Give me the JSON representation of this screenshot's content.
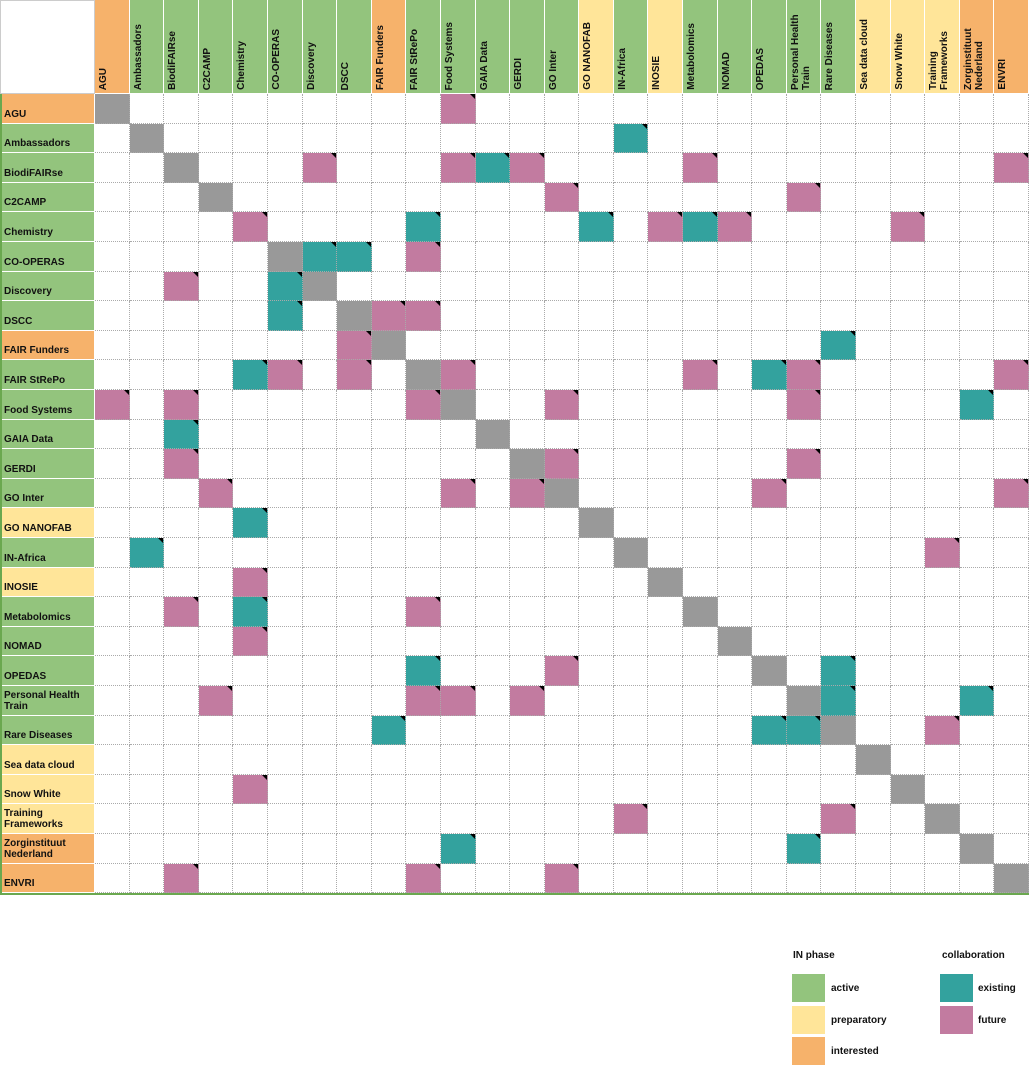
{
  "networks": [
    {
      "name": "AGU",
      "phase": "interested",
      "existing": [],
      "future": [
        "Food Systems"
      ]
    },
    {
      "name": "Ambassadors",
      "phase": "active",
      "existing": [
        "IN-Africa"
      ],
      "future": []
    },
    {
      "name": "BiodiFAIRse",
      "phase": "active",
      "existing": [
        "GAIA Data"
      ],
      "future": [
        "Discovery",
        "Food Systems",
        "GERDI",
        "Metabolomics",
        "ENVRI"
      ]
    },
    {
      "name": "C2CAMP",
      "phase": "active",
      "existing": [],
      "future": [
        "GO Inter",
        "Personal Health Train"
      ]
    },
    {
      "name": "Chemistry",
      "phase": "active",
      "existing": [
        "FAIR StRePo",
        "GO NANOFAB",
        "Metabolomics"
      ],
      "future": [
        "Chemistry",
        "INOSIE",
        "NOMAD",
        "Snow White"
      ]
    },
    {
      "name": "CO-OPERAS",
      "phase": "active",
      "existing": [
        "Discovery",
        "DSCC"
      ],
      "future": [
        "FAIR StRePo"
      ]
    },
    {
      "name": "Discovery",
      "phase": "active",
      "existing": [
        "CO-OPERAS"
      ],
      "future": [
        "BiodiFAIRse"
      ]
    },
    {
      "name": "DSCC",
      "phase": "active",
      "existing": [
        "CO-OPERAS"
      ],
      "future": [
        "FAIR Funders",
        "FAIR StRePo"
      ]
    },
    {
      "name": "FAIR Funders",
      "phase": "interested",
      "existing": [
        "Rare Diseases"
      ],
      "future": [
        "DSCC"
      ]
    },
    {
      "name": "FAIR StRePo",
      "phase": "active",
      "existing": [
        "Chemistry",
        "OPEDAS"
      ],
      "future": [
        "CO-OPERAS",
        "DSCC",
        "Food Systems",
        "Metabolomics",
        "Personal Health Train",
        "ENVRI"
      ]
    },
    {
      "name": "Food Systems",
      "phase": "active",
      "existing": [
        "Zorginstituut Nederland"
      ],
      "future": [
        "AGU",
        "BiodiFAIRse",
        "FAIR StRePo",
        "GO Inter",
        "Personal Health Train"
      ]
    },
    {
      "name": "GAIA Data",
      "phase": "active",
      "existing": [
        "BiodiFAIRse"
      ],
      "future": []
    },
    {
      "name": "GERDI",
      "phase": "active",
      "existing": [],
      "future": [
        "BiodiFAIRse",
        "GO Inter",
        "Personal Health Train"
      ]
    },
    {
      "name": "GO Inter",
      "phase": "active",
      "existing": [],
      "future": [
        "C2CAMP",
        "Food Systems",
        "GERDI",
        "OPEDAS",
        "ENVRI"
      ]
    },
    {
      "name": "GO NANOFAB",
      "phase": "preparatory",
      "existing": [
        "Chemistry"
      ],
      "future": []
    },
    {
      "name": "IN-Africa",
      "phase": "active",
      "existing": [
        "Ambassadors"
      ],
      "future": [
        "Training Frameworks"
      ]
    },
    {
      "name": "INOSIE",
      "phase": "preparatory",
      "existing": [],
      "future": [
        "Chemistry"
      ]
    },
    {
      "name": "Metabolomics",
      "phase": "active",
      "existing": [
        "Chemistry"
      ],
      "future": [
        "BiodiFAIRse",
        "FAIR StRePo"
      ]
    },
    {
      "name": "NOMAD",
      "phase": "active",
      "existing": [],
      "future": [
        "Chemistry"
      ]
    },
    {
      "name": "OPEDAS",
      "phase": "active",
      "existing": [
        "FAIR StRePo",
        "Rare Diseases"
      ],
      "future": [
        "GO Inter"
      ]
    },
    {
      "name": "Personal Health Train",
      "phase": "active",
      "existing": [
        "Rare Diseases",
        "Zorginstituut Nederland"
      ],
      "future": [
        "C2CAMP",
        "FAIR StRePo",
        "Food Systems",
        "GERDI"
      ]
    },
    {
      "name": "Rare Diseases",
      "phase": "active",
      "existing": [
        "FAIR Funders",
        "OPEDAS",
        "Personal Health Train"
      ],
      "future": [
        "Training Frameworks"
      ]
    },
    {
      "name": "Sea data cloud",
      "phase": "preparatory",
      "existing": [],
      "future": []
    },
    {
      "name": "Snow White",
      "phase": "preparatory",
      "existing": [],
      "future": [
        "Chemistry"
      ]
    },
    {
      "name": "Training Frameworks",
      "phase": "preparatory",
      "existing": [],
      "future": [
        "IN-Africa",
        "Rare Diseases"
      ]
    },
    {
      "name": "Zorginstituut Nederland",
      "phase": "interested",
      "existing": [
        "Food Systems",
        "Personal Health Train"
      ],
      "future": []
    },
    {
      "name": "ENVRI",
      "phase": "interested",
      "existing": [],
      "future": [
        "BiodiFAIRse",
        "FAIR StRePo",
        "GO Inter"
      ]
    }
  ],
  "legend": {
    "phase_title": "IN phase",
    "phases": [
      {
        "label": "active",
        "color": "#93c47d"
      },
      {
        "label": "preparatory",
        "color": "#ffe599"
      },
      {
        "label": "interested",
        "color": "#f6b26b"
      }
    ],
    "collaboration_title": "collaboration",
    "kinds": [
      {
        "label": "existing",
        "color": "#33a29e"
      },
      {
        "label": "future",
        "color": "#c27ba0"
      }
    ],
    "self_color": "#999999"
  }
}
